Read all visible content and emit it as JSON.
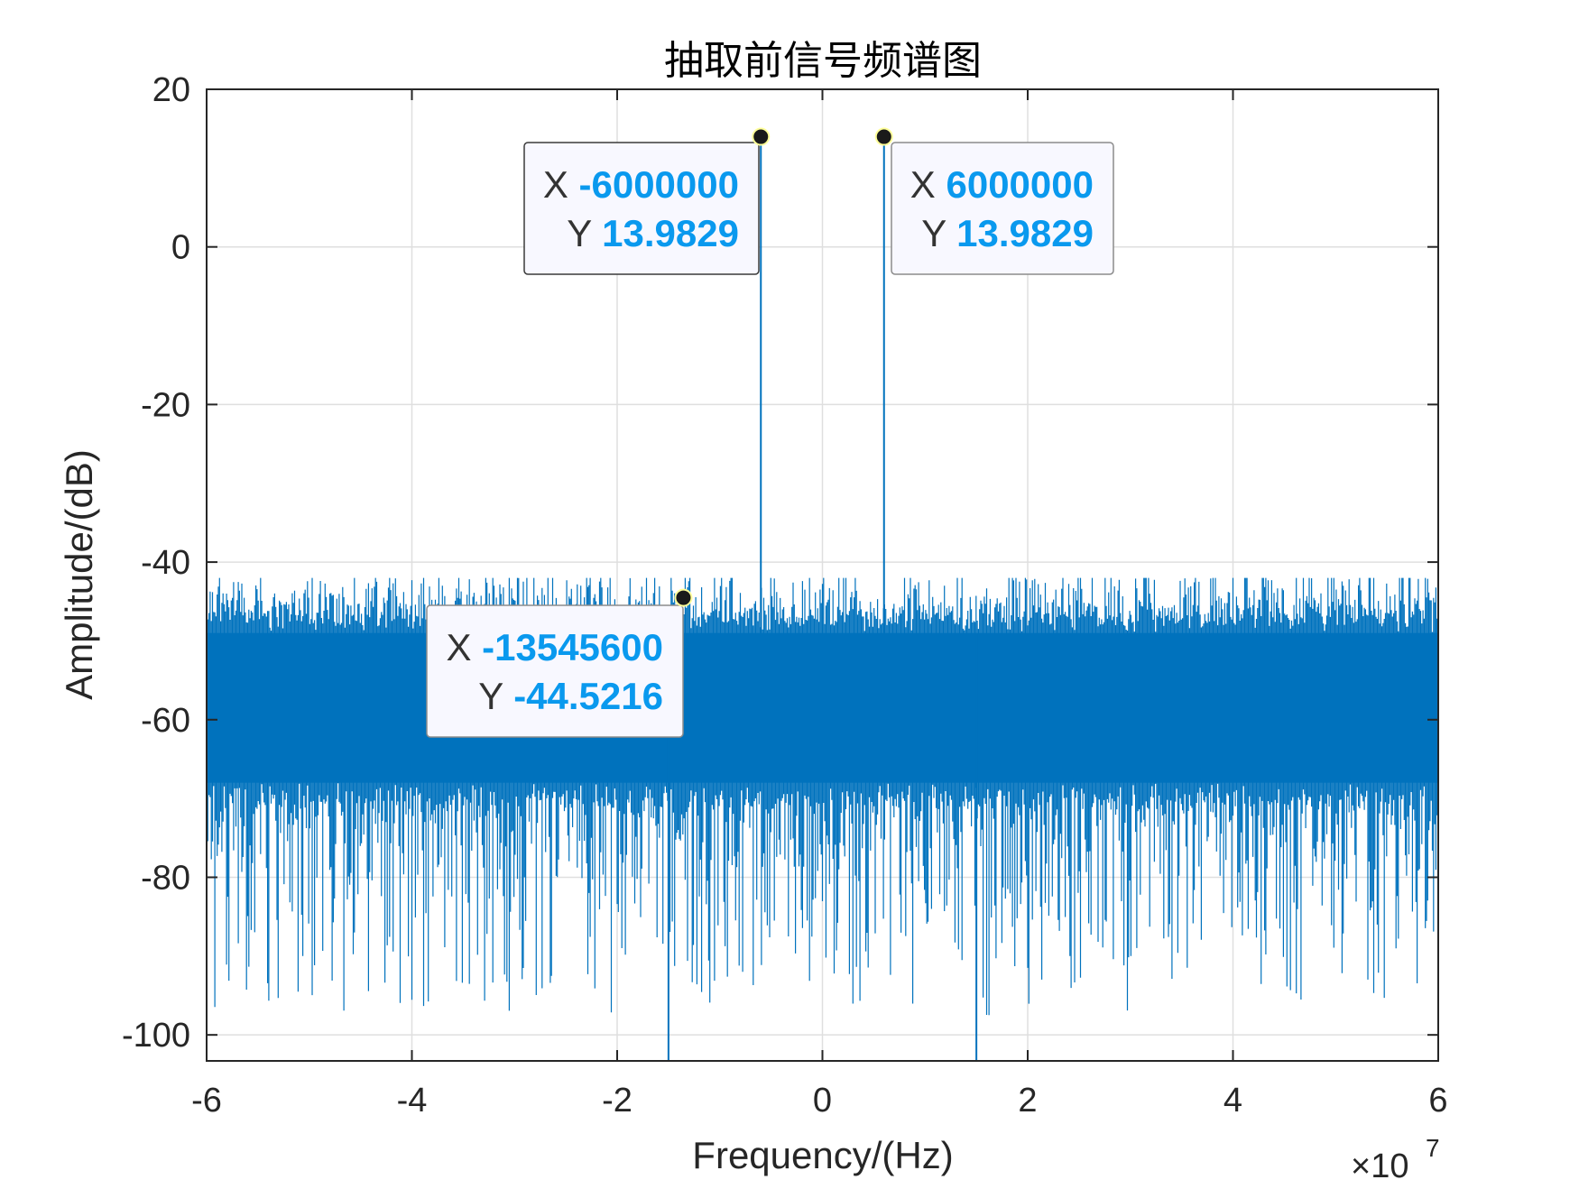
{
  "chart_data": {
    "type": "line",
    "title": "抽取前信号频谱图",
    "xlabel": "Frequency/(Hz)",
    "ylabel": "Amplitude/(dB)",
    "xlim": [
      -6,
      6
    ],
    "ylim": [
      -103.3,
      20
    ],
    "x_exponent_label": "×10",
    "x_exponent_power": "7",
    "xticks": [
      -6,
      -4,
      -2,
      0,
      2,
      4,
      6
    ],
    "xtick_labels": [
      "-6",
      "-4",
      "-2",
      "0",
      "2",
      "4",
      "6"
    ],
    "yticks": [
      20,
      0,
      -20,
      -40,
      -60,
      -80,
      -100
    ],
    "ytick_labels": [
      "20",
      "0",
      "-20",
      "-40",
      "-60",
      "-80",
      "-100"
    ],
    "grid": true,
    "series_color": "#0072bd",
    "noise_floor": {
      "x_range": [
        -6,
        6
      ],
      "typical_range_db": [
        -68,
        -49
      ],
      "peak_max_db": -42,
      "min_db": -95
    },
    "spikes": [
      {
        "x": -0.6,
        "y": 13.9829
      },
      {
        "x": 0.6,
        "y": 13.9829
      },
      {
        "x": -1.5,
        "y": -103.3
      },
      {
        "x": 1.5,
        "y": -103.3
      }
    ],
    "datatips": [
      {
        "x_key": "X",
        "x_value": "-6000000",
        "y_key": "Y",
        "y_value": "13.9829",
        "point_x": -0.6,
        "point_y": 13.9829
      },
      {
        "x_key": "X",
        "x_value": "6000000",
        "y_key": "Y",
        "y_value": "13.9829",
        "point_x": 0.6,
        "point_y": 13.9829
      },
      {
        "x_key": "X",
        "x_value": "-13545600",
        "y_key": "Y",
        "y_value": "-44.5216",
        "point_x": -1.35456,
        "point_y": -44.5216
      }
    ]
  }
}
